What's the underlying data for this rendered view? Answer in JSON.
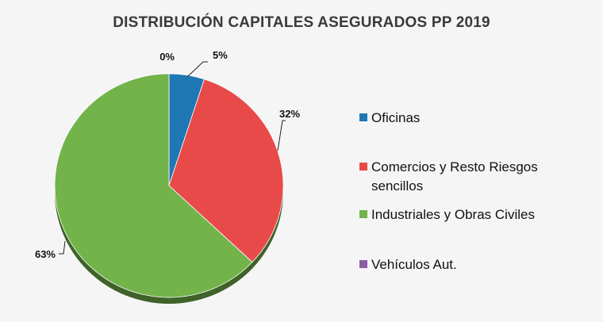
{
  "chart_data": {
    "type": "pie",
    "title": "DISTRIBUCIÓN CAPITALES ASEGURADOS PP 2019",
    "slices": [
      {
        "name": "Oficinas",
        "value": 5,
        "label": "5%",
        "color": "#1f77b4"
      },
      {
        "name": "Comercios y Resto Riesgos sencillos",
        "value": 32,
        "label": "32%",
        "color": "#e84a4a"
      },
      {
        "name": "Industriales y Obras Civiles",
        "value": 63,
        "label": "63%",
        "color": "#72b34a"
      },
      {
        "name": "Vehículos Aut.",
        "value": 0,
        "label": "0%",
        "color": "#8e5ba6"
      }
    ],
    "legend_placement": "right"
  }
}
